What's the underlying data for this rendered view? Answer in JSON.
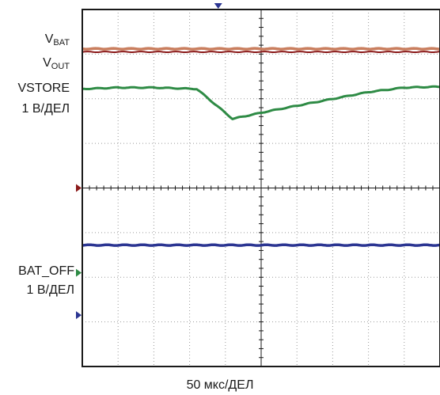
{
  "chart_data": {
    "type": "line",
    "title": "",
    "xlabel": "50 мкс/ДЕЛ",
    "grid": true,
    "x_divisions": 10,
    "y_divisions": 8,
    "xlim": [
      0,
      10
    ],
    "ylim": [
      0,
      8
    ],
    "labels": {
      "top": {
        "vbat_main": "V",
        "vbat_sub": "BAT",
        "vout_main": "V",
        "vout_sub": "OUT",
        "vstore": "VSTORE",
        "scale": "1 В/ДЕЛ"
      },
      "bottom": {
        "name": "BAT_OFF",
        "scale": "1 В/ДЕЛ"
      }
    },
    "series": [
      {
        "color": "#c97e5e",
        "x": [
          0,
          10
        ],
        "y": [
          7.12,
          7.12
        ]
      },
      {
        "color": "#8b1a1a",
        "x": [
          0,
          10
        ],
        "y": [
          7.05,
          7.05
        ]
      },
      {
        "color": "#2e8b45",
        "x": [
          0,
          1.0,
          2.0,
          3.2,
          4.2,
          5.2,
          6.5,
          8.0,
          9.0,
          10
        ],
        "y": [
          6.22,
          6.25,
          6.25,
          6.22,
          5.55,
          5.72,
          5.92,
          6.15,
          6.25,
          6.27
        ]
      },
      {
        "color": "#2b3592",
        "x": [
          0,
          10
        ],
        "y": [
          2.72,
          2.72
        ]
      }
    ],
    "markers": [
      {
        "side": "left",
        "color": "#8b1a1a",
        "y": 4.0
      },
      {
        "side": "left",
        "color": "#2e8b45",
        "y": 2.1
      },
      {
        "side": "left",
        "color": "#2b3592",
        "y": 1.15
      },
      {
        "side": "top",
        "color": "#2b3592",
        "x": 3.8
      }
    ]
  }
}
